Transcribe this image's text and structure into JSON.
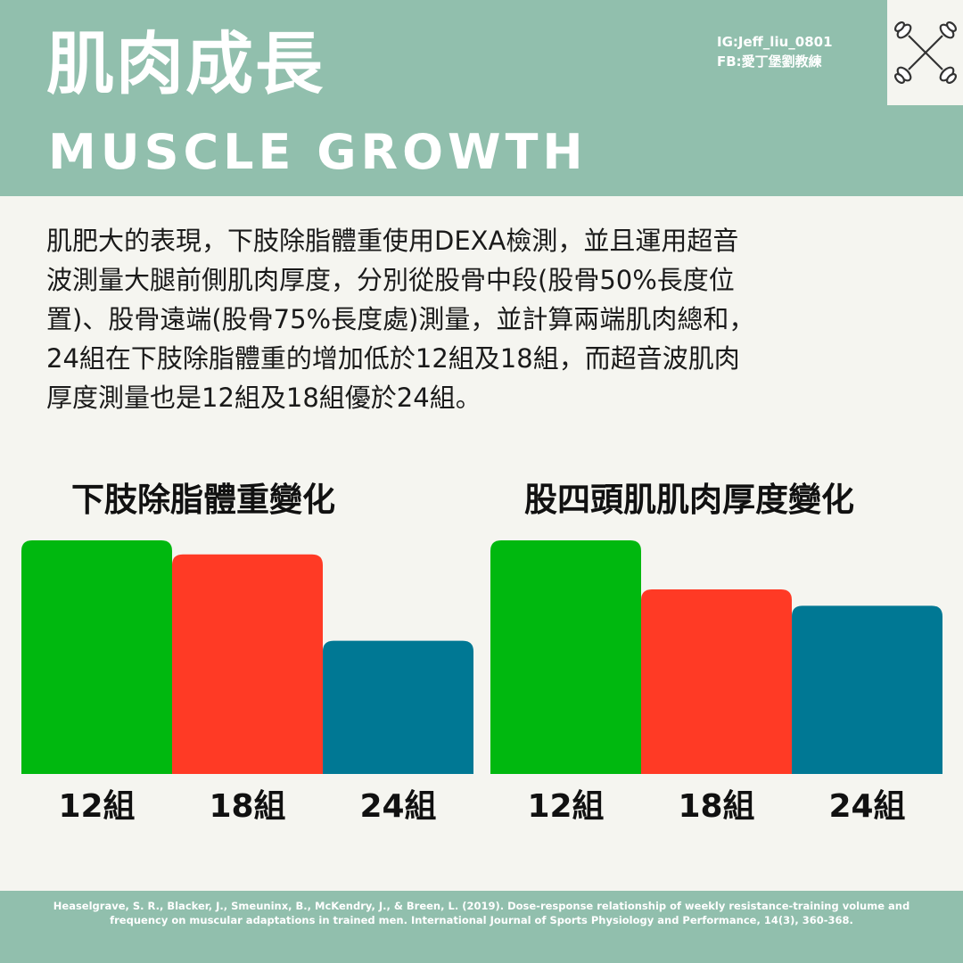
{
  "header": {
    "title_zh": "肌肉成長",
    "title_en": "MUSCLE GROWTH",
    "ig": "IG:Jeff_liu_0801",
    "fb": "FB:愛丁堡劉教練",
    "logo_icon": "crossed-dumbbells-icon"
  },
  "body": {
    "lines": [
      "肌肥大的表現，下肢除脂體重使用DEXA檢測，並且運用超音",
      "波測量大腿前側肌肉厚度，分別從股骨中段(股骨50%長度位",
      "置)、股骨遠端(股骨75%長度處)測量，並計算兩端肌肉總和，",
      "24組在下肢除脂體重的增加低於12組及18組，而超音波肌肉",
      "厚度測量也是12組及18組優於24組。"
    ]
  },
  "chart_data": [
    {
      "type": "bar",
      "title": "下肢除脂體重變化",
      "categories": [
        "12組",
        "18組",
        "24組"
      ],
      "values": [
        100,
        94,
        57
      ],
      "ylim": [
        0,
        100
      ],
      "colors": [
        "#00b80f",
        "#ff3a25",
        "#007894"
      ]
    },
    {
      "type": "bar",
      "title": "股四頭肌肌肉厚度變化",
      "categories": [
        "12組",
        "18組",
        "24組"
      ],
      "values": [
        100,
        79,
        72
      ],
      "ylim": [
        0,
        100
      ],
      "colors": [
        "#00b80f",
        "#ff3a25",
        "#007894"
      ]
    }
  ],
  "footer": {
    "citation_line1": "Heaselgrave, S. R., Blacker, J., Smeuninx, B., McKendry, J., & Breen, L. (2019). Dose-response relationship of weekly resistance-training volume and",
    "citation_line2": "frequency on muscular adaptations in trained men. International Journal of Sports Physiology and Performance, 14(3), 360-368."
  },
  "colors": {
    "header_bg": "#91bfad",
    "page_bg": "#f5f5f0",
    "green": "#00b80f",
    "red": "#ff3a25",
    "teal": "#007894"
  }
}
